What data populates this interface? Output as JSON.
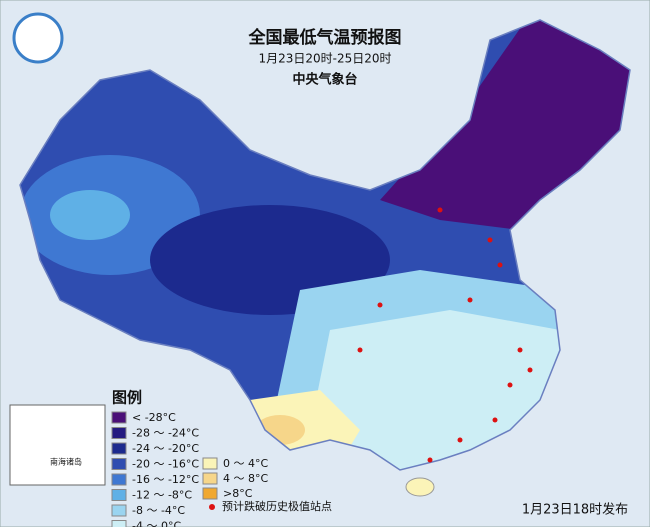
{
  "header": {
    "title": "全国最低气温预报图",
    "period": "1月23日20时-25日20时",
    "issuer": "中央气象台"
  },
  "inset": {
    "label": "南海诸岛"
  },
  "legend": {
    "title": "图例",
    "items": [
      {
        "label": "< -28°C",
        "color": "#4a0f78"
      },
      {
        "label": "-28 ～ -24°C",
        "color": "#241a80"
      },
      {
        "label": "-24 ～ -20°C",
        "color": "#1c2a8e"
      },
      {
        "label": "-20 ～ -16°C",
        "color": "#2f4db0"
      },
      {
        "label": "-16 ～ -12°C",
        "color": "#3f78d2"
      },
      {
        "label": "-12 ～ -8°C",
        "color": "#5fb0e6"
      },
      {
        "label": "-8 ～ -4°C",
        "color": "#9ad4f0"
      },
      {
        "label": "-4 ～ 0°C",
        "color": "#cdeef5"
      },
      {
        "label": "0 ～ 4°C",
        "color": "#fbf4b8"
      },
      {
        "label": "4 ～ 8°C",
        "color": "#f6d68a"
      },
      {
        "label": ">8°C",
        "color": "#f0a830"
      }
    ],
    "station_label": "预计跌破历史极值站点"
  },
  "footer": {
    "issued": "1月23日18时发布"
  }
}
